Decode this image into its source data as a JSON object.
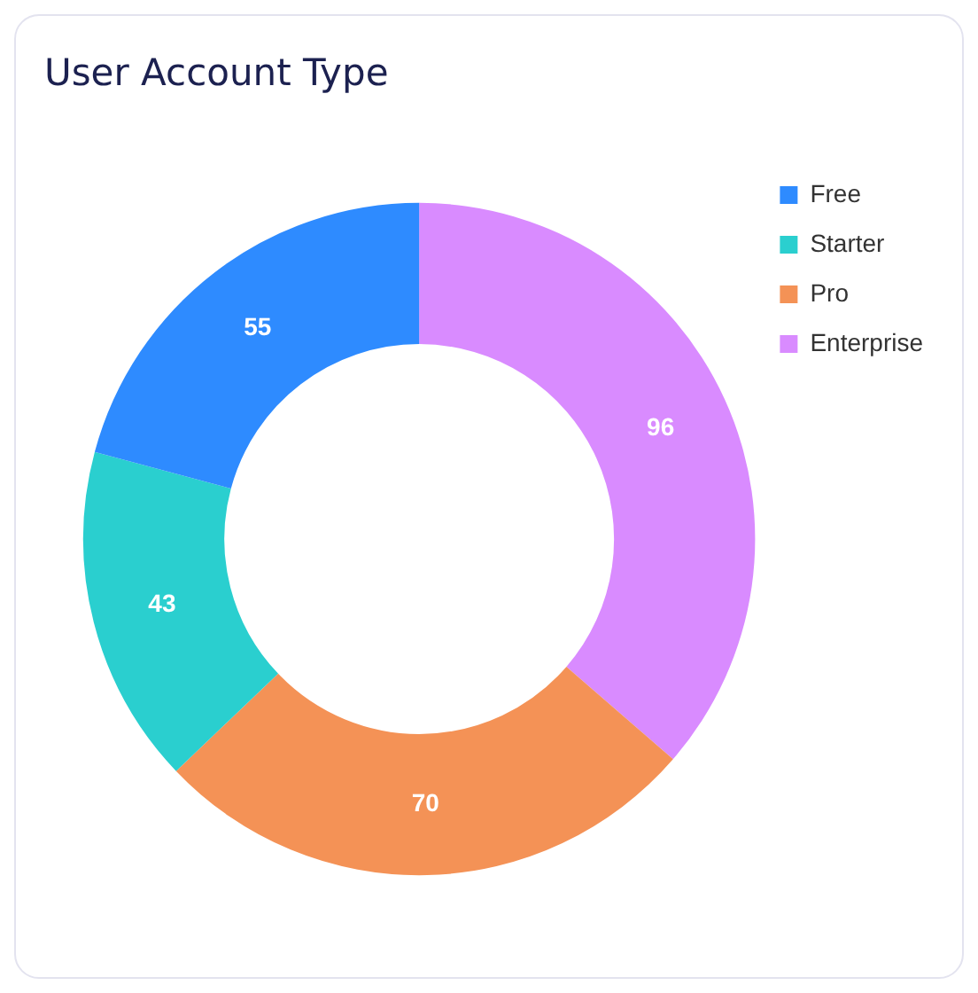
{
  "chart_data": {
    "type": "donut",
    "title": "User Account Type",
    "categories": [
      "Free",
      "Starter",
      "Pro",
      "Enterprise"
    ],
    "values": [
      55,
      43,
      70,
      96
    ],
    "colors": [
      "#2e8bff",
      "#2acfcf",
      "#f49256",
      "#d98bff"
    ],
    "data_labels": true,
    "legend": "right"
  }
}
